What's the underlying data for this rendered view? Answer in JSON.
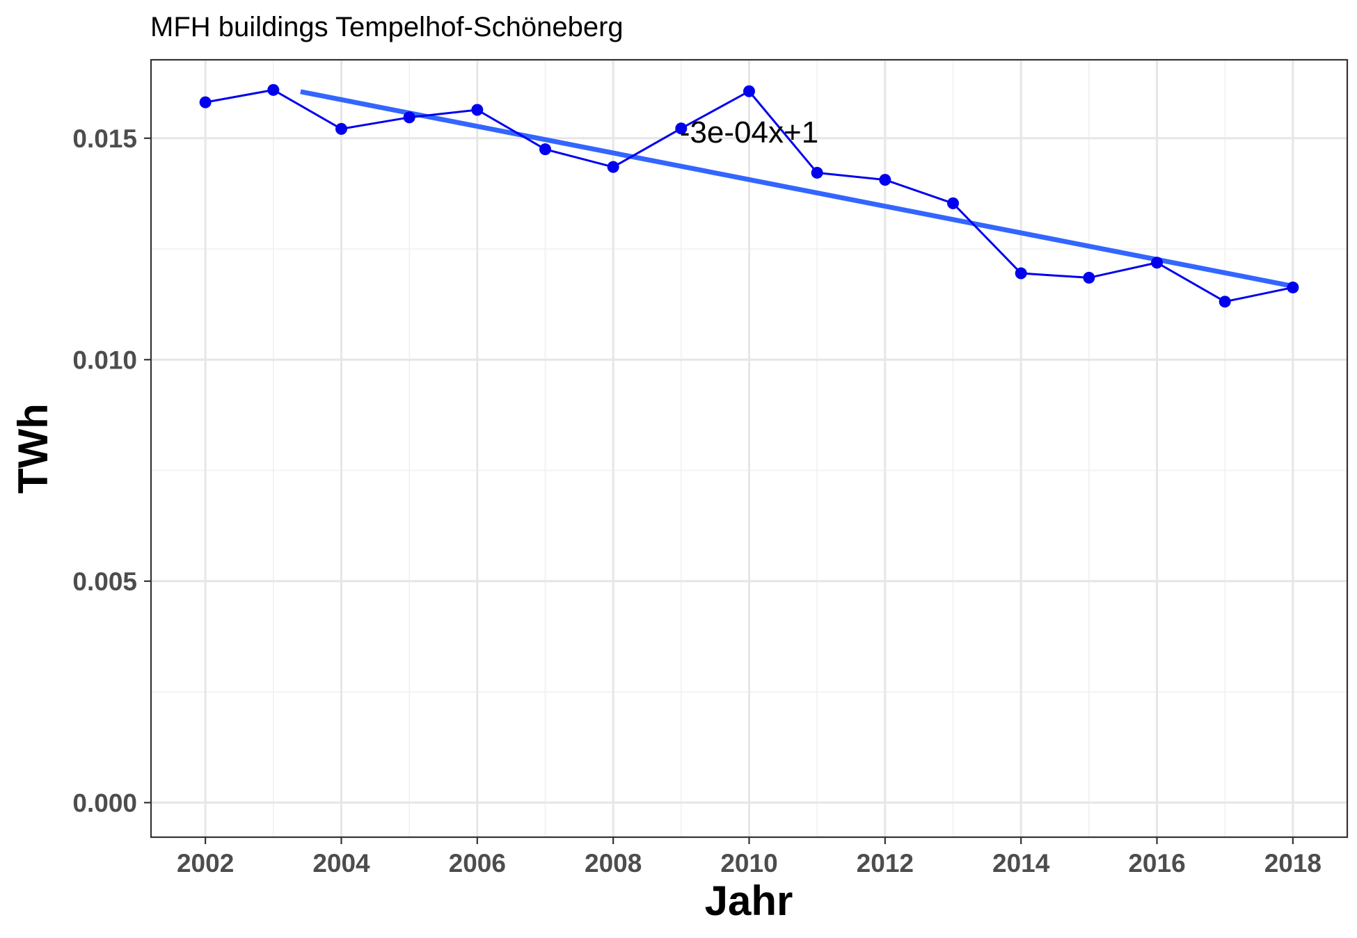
{
  "chart_data": {
    "type": "line",
    "title": "MFH buildings Tempelhof-Schöneberg",
    "xlabel": "Jahr",
    "ylabel": "TWh",
    "xlim": [
      2001.2,
      2018.8
    ],
    "ylim": [
      -0.00078,
      0.01677
    ],
    "x_ticks": [
      2002,
      2004,
      2006,
      2008,
      2010,
      2012,
      2014,
      2016,
      2018
    ],
    "x_tick_labels": [
      "2002",
      "2004",
      "2006",
      "2008",
      "2010",
      "2012",
      "2014",
      "2016",
      "2018"
    ],
    "y_ticks": [
      0.0,
      0.005,
      0.01,
      0.015
    ],
    "y_tick_labels": [
      "0.000",
      "0.005",
      "0.010",
      "0.015"
    ],
    "grid": true,
    "series": [
      {
        "color": "#0000ee",
        "x": [
          2002,
          2003,
          2004,
          2005,
          2006,
          2007,
          2008,
          2009,
          2010,
          2011,
          2012,
          2013,
          2014,
          2015,
          2016,
          2017,
          2018
        ],
        "y": [
          0.01581,
          0.01609,
          0.01521,
          0.01547,
          0.01564,
          0.01475,
          0.01435,
          0.01522,
          0.01606,
          0.01422,
          0.01406,
          0.01353,
          0.01195,
          0.01185,
          0.01219,
          0.01131,
          0.01163
        ]
      }
    ],
    "trendline": {
      "color": "#3366ff",
      "x": [
        2003.4,
        2018
      ],
      "y": [
        0.01605,
        0.01166
      ]
    },
    "annotation": {
      "text": "-3e-04x+1",
      "x": 2010,
      "y": 0.0149
    }
  }
}
